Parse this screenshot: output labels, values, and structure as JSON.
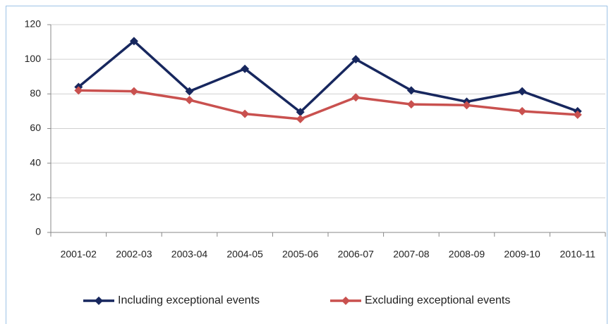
{
  "chart_data": {
    "type": "line",
    "categories": [
      "2001-02",
      "2002-03",
      "2003-04",
      "2004-05",
      "2005-06",
      "2006-07",
      "2007-08",
      "2008-09",
      "2009-10",
      "2010-11"
    ],
    "series": [
      {
        "name": "Including exceptional events",
        "color": "#17275e",
        "values": [
          84,
          110.5,
          81.5,
          94.5,
          69.5,
          100,
          82,
          75.5,
          81.5,
          70
        ]
      },
      {
        "name": "Excluding exceptional events",
        "color": "#c9514f",
        "values": [
          82,
          81.5,
          76.5,
          68.5,
          65.5,
          78,
          74,
          73.5,
          70,
          68
        ]
      }
    ],
    "ylim": [
      0,
      120
    ],
    "yticks": [
      0,
      20,
      40,
      60,
      80,
      100,
      120
    ],
    "grid": true,
    "legend": "bottom"
  }
}
